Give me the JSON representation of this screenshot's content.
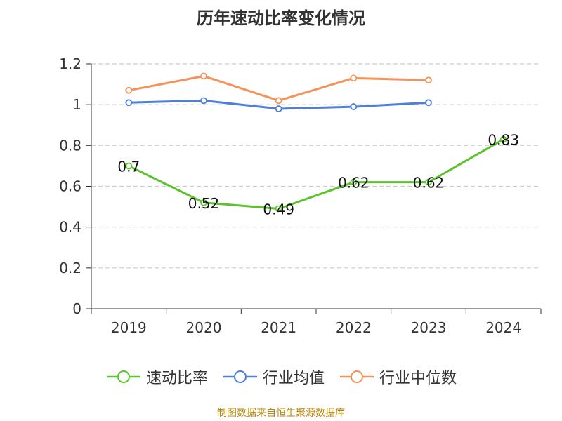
{
  "title": "历年速动比率变化情况",
  "source_note": "制图数据来自恒生聚源数据库",
  "chart_data": {
    "type": "line",
    "title": "历年速动比率变化情况",
    "xlabel": "",
    "ylabel": "",
    "categories": [
      "2019",
      "2020",
      "2021",
      "2022",
      "2023",
      "2024"
    ],
    "ylim": [
      0,
      1.2
    ],
    "yticks": [
      "0",
      "0.2",
      "0.4",
      "0.6",
      "0.8",
      "1",
      "1.2"
    ],
    "grid": true,
    "legend_position": "bottom",
    "series": [
      {
        "name": "速动比率",
        "color": "#5cc22d",
        "values": [
          0.7,
          0.52,
          0.49,
          0.62,
          0.62,
          0.83
        ],
        "labels": [
          "0.7",
          "0.52",
          "0.49",
          "0.62",
          "0.62",
          "0.83"
        ]
      },
      {
        "name": "行业均值",
        "color": "#4e7fdc",
        "values": [
          1.01,
          1.02,
          0.98,
          0.99,
          1.01,
          null
        ]
      },
      {
        "name": "行业中位数",
        "color": "#f4925a",
        "values": [
          1.07,
          1.14,
          1.02,
          1.13,
          1.12,
          null
        ]
      }
    ]
  }
}
